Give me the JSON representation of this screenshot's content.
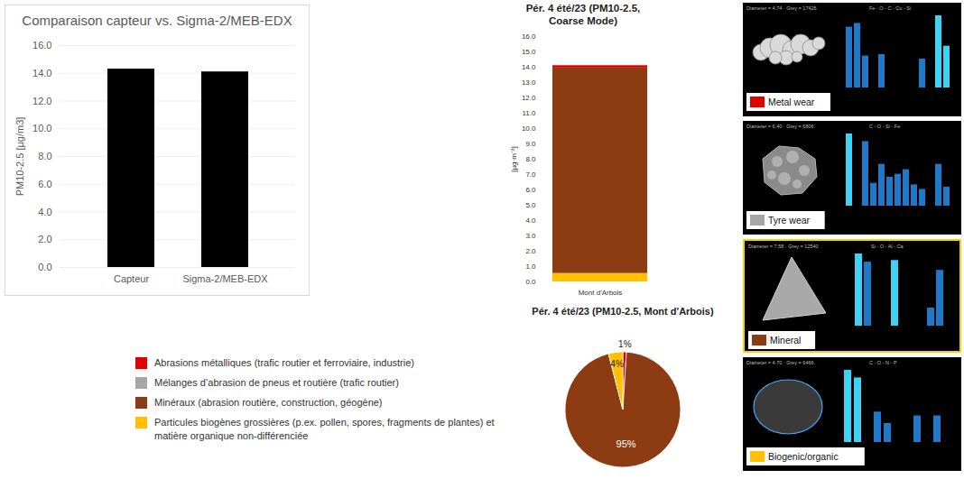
{
  "chart_data": [
    {
      "type": "bar",
      "title": "Comparaison capteur vs. Sigma-2/MEB-EDX",
      "categories": [
        "Capteur",
        "Sigma-2/MEB-EDX"
      ],
      "values": [
        14.3,
        14.1
      ],
      "color": "#000000",
      "y_label": "PM10-2.5 [µg/m3]",
      "ylim": [
        0,
        16
      ],
      "yticks": [
        {
          "value": 0,
          "label": "0.0"
        },
        {
          "value": 2,
          "label": "2.0"
        },
        {
          "value": 4,
          "label": "4.0"
        },
        {
          "value": 6,
          "label": "6.0"
        },
        {
          "value": 8,
          "label": "8.0"
        },
        {
          "value": 10,
          "label": "10.0"
        },
        {
          "value": 12,
          "label": "12.0"
        },
        {
          "value": 14,
          "label": "14.0"
        },
        {
          "value": 16,
          "label": "16.0"
        }
      ],
      "grid": true
    },
    {
      "type": "bar",
      "title": "Pér. 4 été/23 (PM10-2.5, Coarse Mode)",
      "categories": [
        "Mont d'Arbois"
      ],
      "stacked": true,
      "y_label": "[µg·m⁻³]",
      "series": [
        {
          "name": "Abrasions métalliques (trafic routier et ferroviaire, industrie)",
          "color": "#e00000",
          "values": [
            0.15
          ]
        },
        {
          "name": "Mélanges d’abrasion de pneus et routière (trafic routier)",
          "color": "#a6a6a6",
          "values": [
            0
          ]
        },
        {
          "name": "Minéraux (abrasion routière, construction, géogène)",
          "color": "#8c3b12",
          "values": [
            13.4
          ]
        },
        {
          "name": "Particules biogènes grossières (p.ex. pollen, spores, fragments de plantes) et matière organique non-différenciée",
          "color": "#ffc000",
          "values": [
            0.55
          ]
        }
      ],
      "ylim": [
        0,
        16
      ],
      "yticks": [
        {
          "value": 0,
          "label": "0.0"
        },
        {
          "value": 1,
          "label": "1.0"
        },
        {
          "value": 2,
          "label": "2.0"
        },
        {
          "value": 3,
          "label": "3.0"
        },
        {
          "value": 4,
          "label": "4.0"
        },
        {
          "value": 5,
          "label": "5.0"
        },
        {
          "value": 6,
          "label": "6.0"
        },
        {
          "value": 7,
          "label": "7.0"
        },
        {
          "value": 8,
          "label": "8.0"
        },
        {
          "value": 9,
          "label": "9.0"
        },
        {
          "value": 10,
          "label": "10.0"
        },
        {
          "value": 11,
          "label": "11.0"
        },
        {
          "value": 12,
          "label": "12.0"
        },
        {
          "value": 13,
          "label": "13.0"
        },
        {
          "value": 14,
          "label": "14.0"
        },
        {
          "value": 15,
          "label": "15.0"
        },
        {
          "value": 16,
          "label": "16.0"
        }
      ],
      "grid": false,
      "legend": "bottom-left"
    },
    {
      "type": "pie",
      "title": "Pér. 4 été/23 (PM10-2.5, Mont d'Arbois)",
      "categories": [
        "Abrasions métalliques (trafic routier et ferroviaire, industrie)",
        "Minéraux (abrasion routière, construction, géogène)",
        "Particules biogènes grossières (p.ex. pollen, spores, fragments de plantes) et matière organique non-différenciée"
      ],
      "values": [
        1,
        95,
        4
      ],
      "colors": [
        "#e00000",
        "#8c3b12",
        "#ffc000"
      ],
      "data_labels": true,
      "value_labels": [
        "1%",
        "95%",
        "4%"
      ]
    }
  ],
  "particle_panels": [
    {
      "label": "Metal wear",
      "color": "#e00000",
      "info": "Diameter = 4.74 · Grey = 17426",
      "elements": "Fe - O - C - Cu - Si",
      "spectrum": {
        "values": [
          80,
          85,
          42,
          0,
          44,
          0,
          0,
          0,
          0,
          38,
          0,
          95,
          55
        ],
        "colors": [
          "#1f78c8",
          "#1f78c8",
          "#1f78c8",
          "#1f78c8",
          "#1f78c8",
          "#1f78c8",
          "#1f78c8",
          "#1f78c8",
          "#1f78c8",
          "#1f78c8",
          "#1f78c8",
          "#3ed3f5",
          "#3ed3f5"
        ]
      }
    },
    {
      "label": "Tyre wear",
      "color": "#a6a6a6",
      "info": "Diameter = 6.40 · Grey = 6806",
      "elements": "C - O - Si - Fe",
      "spectrum": {
        "values": [
          95,
          0,
          85,
          30,
          55,
          38,
          42,
          48,
          28,
          22,
          0,
          55,
          25
        ],
        "colors": [
          "#3ed3f5",
          "#1f78c8",
          "#1f78c8",
          "#1f78c8",
          "#1f78c8",
          "#1f78c8",
          "#1f78c8",
          "#1f78c8",
          "#1f78c8",
          "#1f78c8",
          "#1f78c8",
          "#1f78c8",
          "#1f78c8"
        ]
      }
    },
    {
      "label": "Mineral",
      "color": "#8c3b12",
      "highlighted": true,
      "info": "Diameter = 7.58 · Grey = 12540",
      "elements": "Si - O - Al - Ca",
      "spectrum": {
        "values": [
          0,
          88,
          78,
          0,
          0,
          80,
          0,
          0,
          0,
          22,
          68,
          0
        ],
        "colors": [
          "#1f78c8",
          "#3ed3f5",
          "#1f78c8",
          "#1f78c8",
          "#1f78c8",
          "#3ed3f5",
          "#1f78c8",
          "#1f78c8",
          "#1f78c8",
          "#1f78c8",
          "#1f78c8",
          "#1f78c8"
        ]
      }
    },
    {
      "label": "Biogenic/organic",
      "color": "#ffc000",
      "info": "Diameter = 4.70 · Grey = 6466",
      "elements": "C - O - N - P",
      "spectrum": {
        "values": [
          95,
          85,
          0,
          40,
          25,
          0,
          0,
          35,
          0,
          35,
          0
        ],
        "colors": [
          "#3ed3f5",
          "#3ed3f5",
          "#1f78c8",
          "#1f78c8",
          "#1f78c8",
          "#1f78c8",
          "#1f78c8",
          "#1f78c8",
          "#1f78c8",
          "#1f78c8",
          "#1f78c8"
        ]
      }
    }
  ]
}
